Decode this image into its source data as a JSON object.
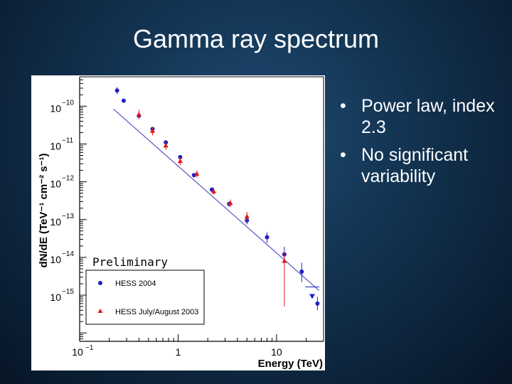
{
  "slide": {
    "title": "Gamma ray spectrum",
    "bullets": [
      {
        "bullet": "•",
        "text": "Power law, index 2.3"
      },
      {
        "bullet": "•",
        "text": "No significant variability"
      }
    ]
  },
  "colors": {
    "hess2004": "#1f1fc8",
    "hess2003": "#e01818",
    "fit_line": "#3a3ab8",
    "axis": "#000000",
    "background": "#ffffff"
  },
  "chart_data": {
    "type": "scatter",
    "xscale": "log",
    "yscale": "log",
    "xlabel": "Energy (TeV)",
    "ylabel": "dN/dE (TeV⁻¹ cm⁻² s⁻¹)",
    "xlim": [
      0.1,
      30
    ],
    "ylim": [
      6e-17,
      6e-10
    ],
    "x_ticks": [
      {
        "value": 0.1,
        "base": "10",
        "exp": "−1"
      },
      {
        "value": 1,
        "base": "1",
        "exp": ""
      },
      {
        "value": 10,
        "base": "10",
        "exp": ""
      }
    ],
    "y_ticks": [
      {
        "value": 1e-10,
        "base": "10",
        "exp": "−10"
      },
      {
        "value": 1e-11,
        "base": "10",
        "exp": "−11"
      },
      {
        "value": 1e-12,
        "base": "10",
        "exp": "−12"
      },
      {
        "value": 1e-13,
        "base": "10",
        "exp": "−13"
      },
      {
        "value": 1e-14,
        "base": "10",
        "exp": "−14"
      },
      {
        "value": 1e-15,
        "base": "10",
        "exp": "−15"
      }
    ],
    "annotation": "Preliminary",
    "legend_position": "bottom-left",
    "fit": {
      "label": "Power law",
      "index": 2.3,
      "x_range": [
        0.22,
        27
      ],
      "norm_at_1TeV": 2.6e-12
    },
    "series": [
      {
        "name": "HESS 2004",
        "marker": "circle",
        "points": [
          {
            "x": 0.24,
            "y": 2.6e-10,
            "err_lo": 5e-11,
            "err_hi": 6e-11
          },
          {
            "x": 0.28,
            "y": 1.4e-10,
            "err_lo": 1.5e-11,
            "err_hi": 1.5e-11
          },
          {
            "x": 0.4,
            "y": 5.6e-11,
            "err_lo": 5e-12,
            "err_hi": 5e-12
          },
          {
            "x": 0.55,
            "y": 2.5e-11,
            "err_lo": 2e-12,
            "err_hi": 2e-12
          },
          {
            "x": 0.75,
            "y": 1.1e-11,
            "err_lo": 1e-12,
            "err_hi": 1e-12
          },
          {
            "x": 1.05,
            "y": 4.5e-12,
            "err_lo": 5e-13,
            "err_hi": 5e-13
          },
          {
            "x": 1.45,
            "y": 1.5e-12,
            "err_lo": 2e-13,
            "err_hi": 2e-13
          },
          {
            "x": 2.2,
            "y": 6.2e-13,
            "err_lo": 8e-14,
            "err_hi": 8e-14
          },
          {
            "x": 3.3,
            "y": 2.6e-13,
            "err_lo": 4e-14,
            "err_hi": 4e-14
          },
          {
            "x": 5.0,
            "y": 9.5e-14,
            "err_lo": 2e-14,
            "err_hi": 2e-14
          },
          {
            "x": 8.0,
            "y": 3.4e-14,
            "err_lo": 1e-14,
            "err_hi": 1.2e-14
          },
          {
            "x": 12.0,
            "y": 1.2e-14,
            "err_lo": 5e-15,
            "err_hi": 7e-15
          },
          {
            "x": 18.0,
            "y": 4.2e-15,
            "err_lo": 2e-15,
            "err_hi": 3e-15
          },
          {
            "x": 26.0,
            "y": 6e-16,
            "err_lo": 2e-16,
            "err_hi": 3e-16
          }
        ],
        "upper_limits": [
          {
            "x": 23.0,
            "y": 9e-16
          }
        ]
      },
      {
        "name": "HESS July/August 2003",
        "marker": "triangle",
        "points": [
          {
            "x": 0.4,
            "y": 6e-11,
            "err_lo": 1.5e-11,
            "err_hi": 2e-11
          },
          {
            "x": 0.55,
            "y": 2.2e-11,
            "err_lo": 5e-12,
            "err_hi": 6e-12
          },
          {
            "x": 0.75,
            "y": 9e-12,
            "err_lo": 2e-12,
            "err_hi": 3e-12
          },
          {
            "x": 1.05,
            "y": 3.5e-12,
            "err_lo": 8e-13,
            "err_hi": 1e-12
          },
          {
            "x": 1.55,
            "y": 1.6e-12,
            "err_lo": 3e-13,
            "err_hi": 4e-13
          },
          {
            "x": 2.3,
            "y": 5.5e-13,
            "err_lo": 1e-13,
            "err_hi": 1.5e-13
          },
          {
            "x": 3.4,
            "y": 2.7e-13,
            "err_lo": 5e-14,
            "err_hi": 7e-14
          },
          {
            "x": 5.0,
            "y": 1.2e-13,
            "err_lo": 3e-14,
            "err_hi": 4e-14
          },
          {
            "x": 12.0,
            "y": 8e-15,
            "err_lo": 7.5e-15,
            "err_hi": 6e-15
          }
        ],
        "upper_limits": []
      }
    ]
  }
}
